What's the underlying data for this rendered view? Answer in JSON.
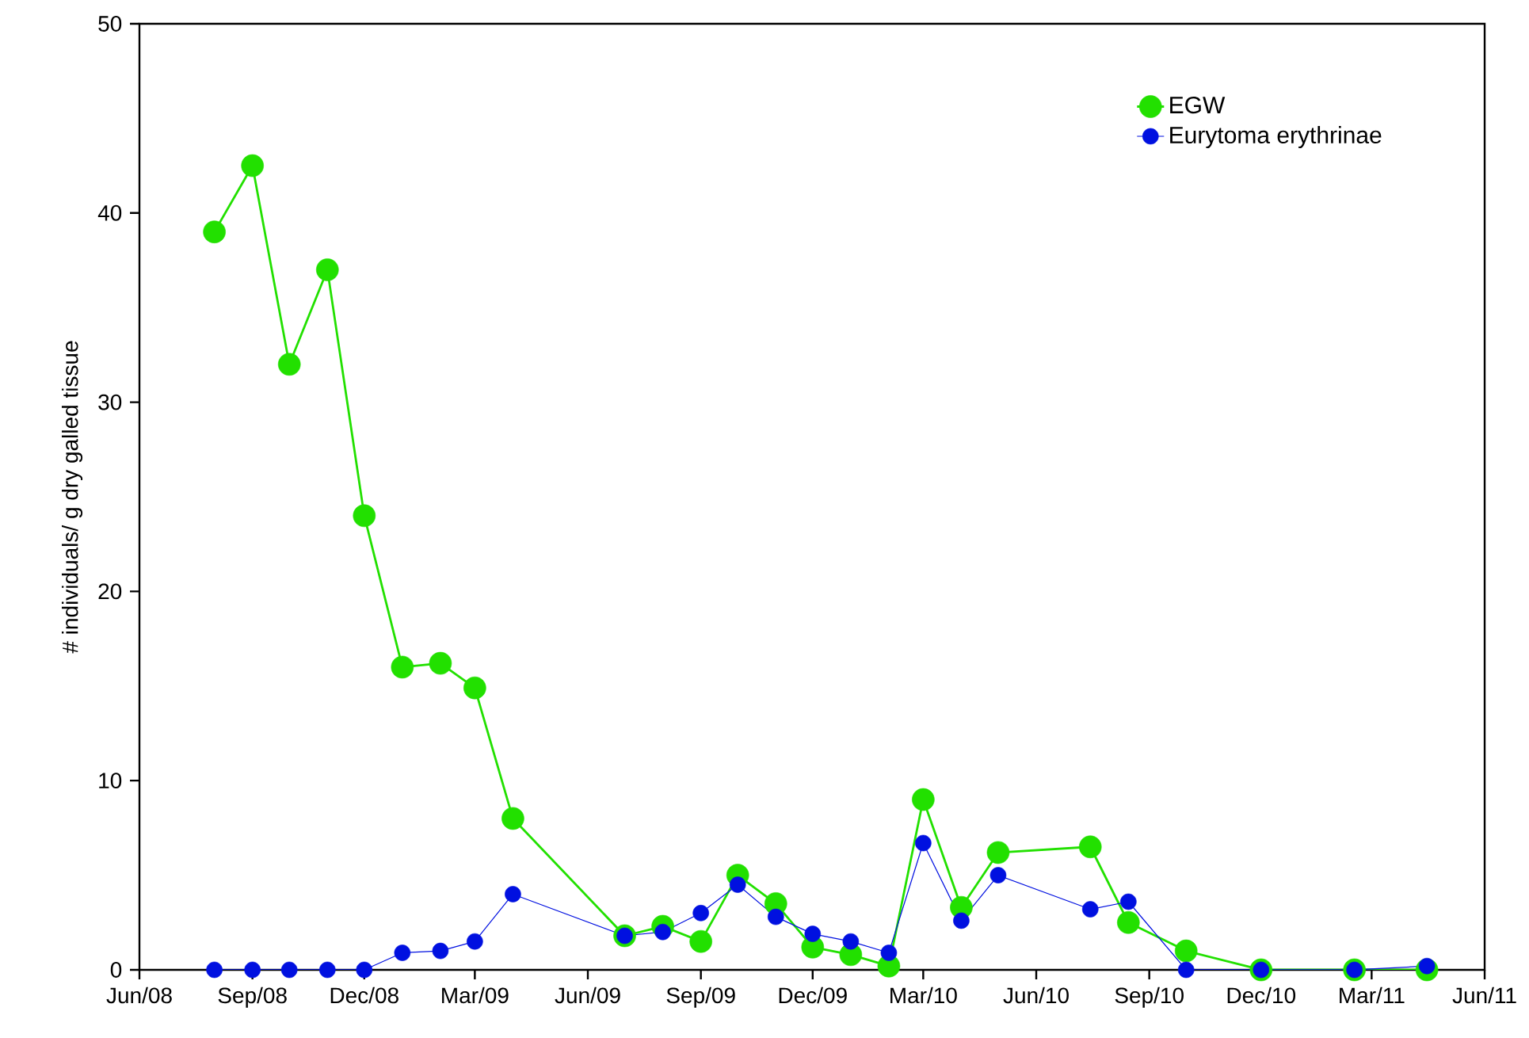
{
  "chart_data": {
    "type": "line",
    "ylabel": "# individuals/ g dry galled tissue",
    "x": [
      "2008-08-01",
      "2008-09-01",
      "2008-10-01",
      "2008-11-01",
      "2008-12-01",
      "2009-01-01",
      "2009-02-01",
      "2009-03-01",
      "2009-04-01",
      "2009-07-01",
      "2009-08-01",
      "2009-09-01",
      "2009-10-01",
      "2009-11-01",
      "2009-12-01",
      "2010-01-01",
      "2010-02-01",
      "2010-03-01",
      "2010-04-01",
      "2010-05-01",
      "2010-07-15",
      "2010-08-15",
      "2010-10-01",
      "2010-12-01",
      "2011-02-15",
      "2011-04-15"
    ],
    "series": [
      {
        "name": "EGW",
        "color": "#22e000",
        "values": [
          39,
          42.5,
          32,
          37,
          24,
          16,
          16.2,
          14.9,
          8,
          1.8,
          2.3,
          1.5,
          5.0,
          3.5,
          1.2,
          0.8,
          0.2,
          9.0,
          3.3,
          6.2,
          6.5,
          2.5,
          1.0,
          0,
          0,
          0
        ]
      },
      {
        "name": "Eurytoma erythrinae",
        "color": "#0010e0",
        "values": [
          0,
          0,
          0,
          0,
          0,
          0.9,
          1.0,
          1.5,
          4.0,
          1.8,
          2.0,
          3.0,
          4.5,
          2.8,
          1.9,
          1.5,
          0.9,
          6.7,
          2.6,
          5.0,
          3.2,
          3.6,
          0,
          0,
          0,
          0.2
        ]
      }
    ],
    "xlim": [
      "2008-06-01",
      "2011-06-01"
    ],
    "xticks": [
      {
        "value": "2008-06-01",
        "label": "Jun/08"
      },
      {
        "value": "2008-09-01",
        "label": "Sep/08"
      },
      {
        "value": "2008-12-01",
        "label": "Dec/08"
      },
      {
        "value": "2009-03-01",
        "label": "Mar/09"
      },
      {
        "value": "2009-06-01",
        "label": "Jun/09"
      },
      {
        "value": "2009-09-01",
        "label": "Sep/09"
      },
      {
        "value": "2009-12-01",
        "label": "Dec/09"
      },
      {
        "value": "2010-03-01",
        "label": "Mar/10"
      },
      {
        "value": "2010-06-01",
        "label": "Jun/10"
      },
      {
        "value": "2010-09-01",
        "label": "Sep/10"
      },
      {
        "value": "2010-12-01",
        "label": "Dec/10"
      },
      {
        "value": "2011-03-01",
        "label": "Mar/11"
      },
      {
        "value": "2011-06-01",
        "label": "Jun/11"
      }
    ],
    "ylim": [
      0,
      50
    ],
    "yticks": [
      0,
      10,
      20,
      30,
      40,
      50
    ],
    "grid": false,
    "legend": "top right",
    "marker": "circle",
    "line_style": "solid"
  }
}
